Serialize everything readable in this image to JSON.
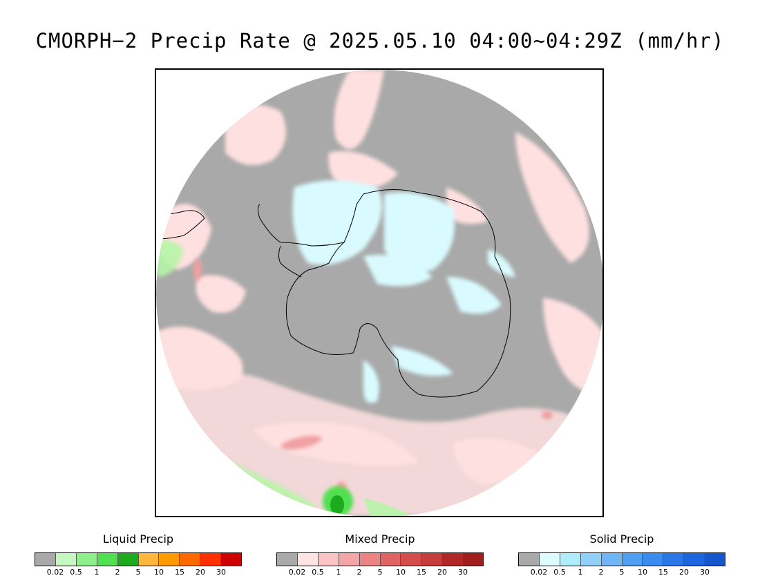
{
  "title": "CMORPH−2 Precip Rate @ 2025.05.10 04:00~04:29Z (mm/hr)",
  "map": {
    "projection": "south-polar-stereographic",
    "background_color": "#a9a9a9",
    "colors": {
      "no_precip": "#a9a9a9",
      "mixed_light": "#ffe0e0",
      "mixed_mid": "#f4a6a6",
      "mixed_high": "#e07070",
      "solid_light": "#d9fbff",
      "liquid_light": "#b6f5a8",
      "liquid_mid": "#50e050",
      "liquid_high": "#1eaa1e",
      "coastline": "#000000"
    }
  },
  "legends": [
    {
      "id": "liquid",
      "title": "Liquid Precip",
      "colors": [
        "#a9a9a9",
        "#c6f7c0",
        "#8ef08a",
        "#50e050",
        "#1eaa1e",
        "#ffb63a",
        "#ff9a00",
        "#ff6a00",
        "#ff3000",
        "#cc0000"
      ],
      "ticks": [
        "0.02",
        "0.5",
        "1",
        "2",
        "5",
        "10",
        "15",
        "20",
        "30"
      ]
    },
    {
      "id": "mixed",
      "title": "Mixed Precip",
      "colors": [
        "#a9a9a9",
        "#ffe4e4",
        "#fcc4c4",
        "#f4a6a6",
        "#ec8484",
        "#e06464",
        "#d44c4c",
        "#c43c3c",
        "#b02828",
        "#a01e1e"
      ],
      "ticks": [
        "0.02",
        "0.5",
        "1",
        "2",
        "5",
        "10",
        "15",
        "20",
        "30"
      ]
    },
    {
      "id": "solid",
      "title": "Solid Precip",
      "colors": [
        "#a9a9a9",
        "#dcfcff",
        "#aeeefc",
        "#90d0fa",
        "#70b6f6",
        "#50a0f2",
        "#3a8cee",
        "#2a78e8",
        "#1e66de",
        "#1656cc"
      ],
      "ticks": [
        "0.02",
        "0.5",
        "1",
        "2",
        "5",
        "10",
        "15",
        "20",
        "30"
      ]
    }
  ]
}
